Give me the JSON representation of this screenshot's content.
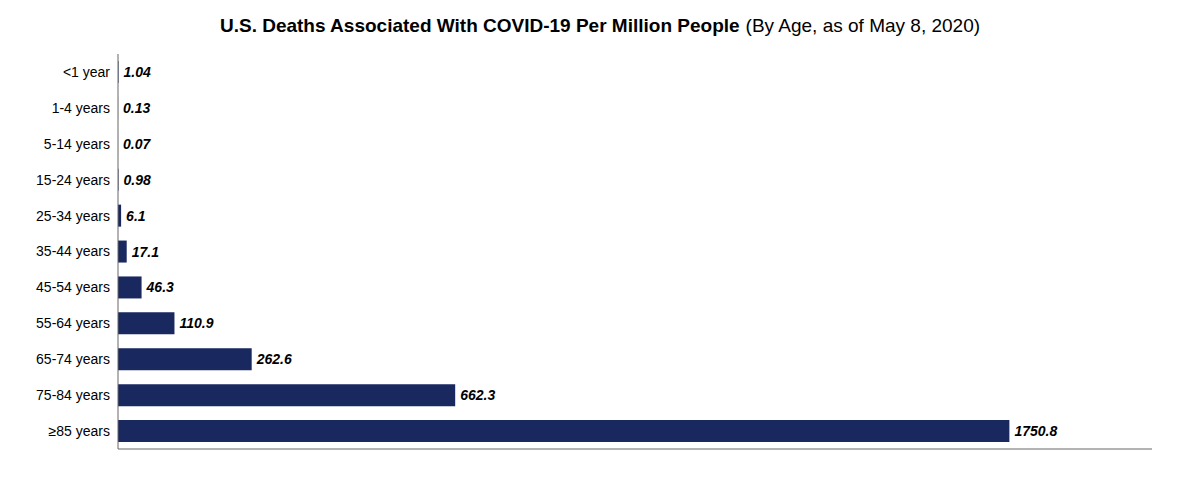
{
  "chart_data": {
    "type": "bar",
    "orientation": "horizontal",
    "title": "U.S. Deaths Associated With COVID-19 Per Million People",
    "subtitle": "(By Age, as of May 8, 2020)",
    "categories": [
      "<1 year",
      "1-4 years",
      "5-14 years",
      "15-24 years",
      "25-34 years",
      "35-44 years",
      "45-54 years",
      "55-64 years",
      "65-74 years",
      "75-84 years",
      "≥85 years"
    ],
    "values": [
      1.04,
      0.13,
      0.07,
      0.98,
      6.1,
      17.1,
      46.3,
      110.9,
      262.6,
      662.3,
      1750.8
    ],
    "color": "#1a2860",
    "xlim": [
      0,
      2030.928
    ],
    "xticks": [],
    "grid": false,
    "data_labels": true,
    "tick_labels": "y"
  }
}
